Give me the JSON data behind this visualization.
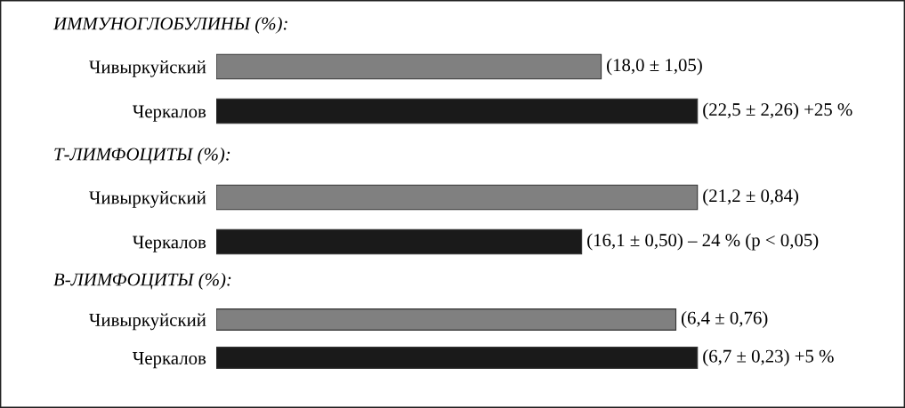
{
  "chart_data": [
    {
      "type": "bar",
      "orientation": "horizontal",
      "title": "ИММУНОГЛОБУЛИНЫ (%):",
      "categories": [
        "Чивыркуйский",
        "Черкалов"
      ],
      "values": [
        18.0,
        22.5
      ],
      "colors": [
        "#808080",
        "#1a1a1a"
      ],
      "value_labels": [
        "(18,0 ± 1,05)",
        "(22,5 ± 2,26) +25 %"
      ],
      "tick_labels": "y"
    },
    {
      "type": "bar",
      "orientation": "horizontal",
      "title": "Т-ЛИМФОЦИТЫ (%):",
      "categories": [
        "Чивыркуйский",
        "Черкалов"
      ],
      "values": [
        21.2,
        16.1
      ],
      "colors": [
        "#808080",
        "#1a1a1a"
      ],
      "value_labels": [
        "(21,2 ± 0,84)",
        "(16,1 ± 0,50) – 24 % (p < 0,05)"
      ],
      "tick_labels": "y"
    },
    {
      "type": "bar",
      "orientation": "horizontal",
      "title": "В-ЛИМФОЦИТЫ (%):",
      "categories": [
        "Чивыркуйский",
        "Черкалов"
      ],
      "values": [
        6.4,
        6.7
      ],
      "colors": [
        "#808080",
        "#1a1a1a"
      ],
      "value_labels": [
        "(6,4 ± 0,76)",
        "(6,7 ± 0,23) +5 %"
      ],
      "tick_labels": "y"
    }
  ]
}
